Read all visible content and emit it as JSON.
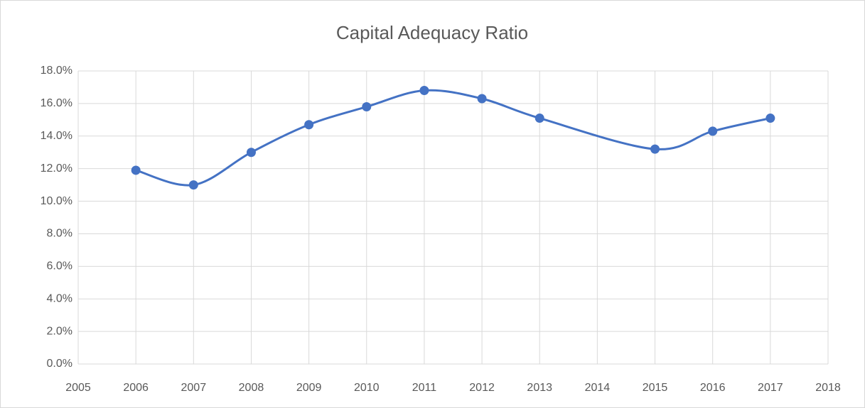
{
  "chart_data": {
    "type": "line",
    "title": "Capital Adequacy Ratio",
    "x": [
      2006,
      2007,
      2008,
      2009,
      2010,
      2011,
      2012,
      2013,
      2015,
      2016,
      2017
    ],
    "series": [
      {
        "color": "#4472c4",
        "values": [
          11.9,
          11.0,
          13.0,
          14.7,
          15.8,
          16.8,
          16.3,
          15.1,
          13.2,
          14.3,
          15.1
        ]
      }
    ],
    "xlim": [
      2005,
      2018
    ],
    "xticks": [
      2005,
      2006,
      2007,
      2008,
      2009,
      2010,
      2011,
      2012,
      2013,
      2014,
      2015,
      2016,
      2017,
      2018
    ],
    "ylim": [
      0,
      18
    ],
    "yticks": [
      {
        "value": 0,
        "label": "0.0%"
      },
      {
        "value": 2,
        "label": "2.0%"
      },
      {
        "value": 4,
        "label": "4.0%"
      },
      {
        "value": 6,
        "label": "6.0%"
      },
      {
        "value": 8,
        "label": "8.0%"
      },
      {
        "value": 10,
        "label": "10.0%"
      },
      {
        "value": 12,
        "label": "12.0%"
      },
      {
        "value": 14,
        "label": "14.0%"
      },
      {
        "value": 16,
        "label": "16.0%"
      },
      {
        "value": 18,
        "label": "18.0%"
      }
    ],
    "grid": true,
    "smooth": true
  }
}
